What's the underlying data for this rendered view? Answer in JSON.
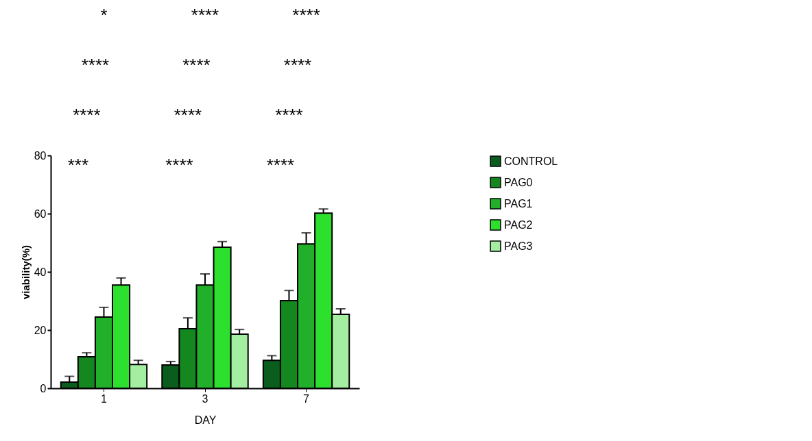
{
  "chart_data": {
    "type": "bar",
    "xlabel": "DAY",
    "ylabel": "viability(%)",
    "categories": [
      "1",
      "3",
      "7"
    ],
    "series": [
      {
        "name": "CONTROL",
        "color": "#0b5d1e",
        "values": [
          2.1,
          8.0,
          9.6
        ],
        "errors": [
          [
            2.1,
            4.1
          ],
          [
            8.0,
            9.2
          ],
          [
            9.6,
            11.2
          ]
        ]
      },
      {
        "name": "PAG0",
        "color": "#15871f",
        "values": [
          10.8,
          20.5,
          30.1
        ],
        "errors": [
          [
            10.8,
            12.2
          ],
          [
            20.5,
            24.2
          ],
          [
            30.1,
            33.6
          ]
        ]
      },
      {
        "name": "PAG1",
        "color": "#22b02a",
        "values": [
          24.5,
          35.5,
          49.6
        ],
        "errors": [
          [
            24.5,
            27.8
          ],
          [
            35.5,
            39.3
          ],
          [
            49.6,
            53.4
          ]
        ]
      },
      {
        "name": "PAG2",
        "color": "#2ee02e",
        "values": [
          35.5,
          48.5,
          60.2
        ],
        "errors": [
          [
            35.5,
            37.9
          ],
          [
            48.5,
            50.4
          ],
          [
            60.2,
            61.6
          ]
        ]
      },
      {
        "name": "PAG3",
        "color": "#a3eea0",
        "values": [
          8.2,
          18.6,
          25.4
        ],
        "errors": [
          [
            8.2,
            9.6
          ],
          [
            18.6,
            20.2
          ],
          [
            25.4,
            27.3
          ]
        ]
      }
    ],
    "ylim": [
      0,
      80
    ],
    "yticks": [
      0,
      20,
      40,
      60,
      80
    ],
    "grid": false,
    "legend": "right",
    "annotations": [
      "***",
      "****",
      "****",
      "*",
      "****",
      "****",
      "****",
      "****",
      "****",
      "****",
      "****",
      "****"
    ]
  }
}
